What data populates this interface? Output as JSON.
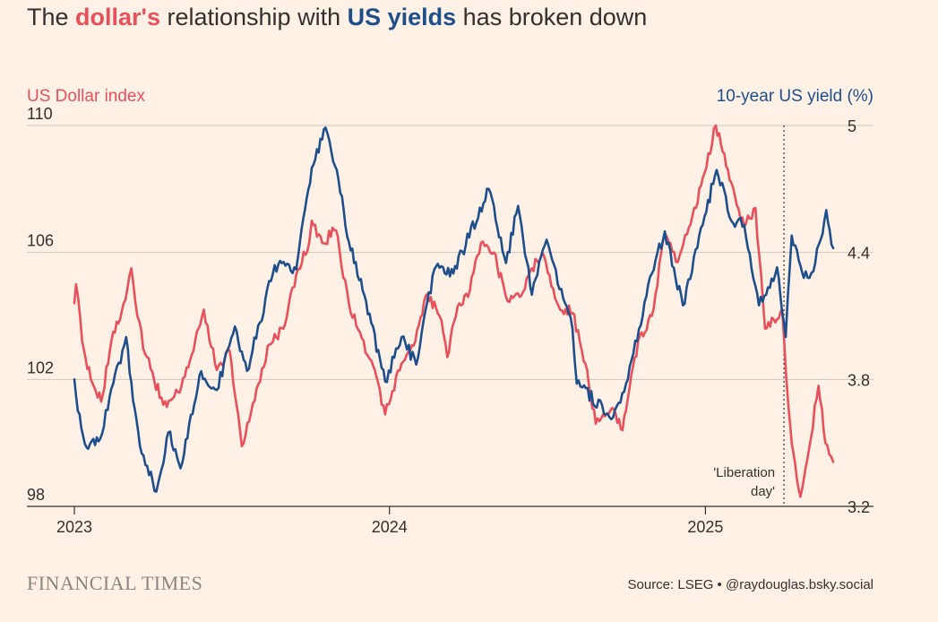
{
  "title": {
    "prefix": "The ",
    "dollar": "dollar's",
    "middle": " relationship with ",
    "yields": "US yields",
    "suffix": " has broken down"
  },
  "left_axis_title": "US Dollar index",
  "right_axis_title": "10-year US yield (%)",
  "footer": {
    "logo": "FINANCIAL TIMES",
    "source": "Source: LSEG • @raydouglas.bsky.social"
  },
  "colors": {
    "dollar": "#e8505b",
    "yield": "#1d4f8c",
    "grid": "#cfc7be",
    "text": "#33302e"
  },
  "chart_data": {
    "type": "line",
    "x_ticks": [
      {
        "label": "2023",
        "date": "2023-01-01"
      },
      {
        "label": "2024",
        "date": "2024-01-01"
      },
      {
        "label": "2025",
        "date": "2025-01-01"
      }
    ],
    "x_range": [
      "2023-01-01",
      "2025-05-29"
    ],
    "left_axis": {
      "label": "US Dollar index",
      "range": [
        98,
        110
      ],
      "ticks": [
        98,
        102,
        106,
        110
      ]
    },
    "right_axis": {
      "label": "10-year US yield (%)",
      "range": [
        3.2,
        5.0
      ],
      "ticks": [
        3.2,
        3.8,
        4.4,
        5
      ]
    },
    "grid": true,
    "annotation": {
      "lines": [
        "'Liberation",
        "day'"
      ],
      "date": "2025-04-02"
    },
    "series": [
      {
        "name": "US Dollar index",
        "axis": "left",
        "points": [
          [
            "2023-01-01",
            104.4
          ],
          [
            "2023-01-03",
            105.0
          ],
          [
            "2023-01-10",
            103.2
          ],
          [
            "2023-01-20",
            102.0
          ],
          [
            "2023-02-01",
            101.3
          ],
          [
            "2023-02-15",
            103.5
          ],
          [
            "2023-03-01",
            104.5
          ],
          [
            "2023-03-08",
            105.5
          ],
          [
            "2023-03-15",
            104.0
          ],
          [
            "2023-03-24",
            102.8
          ],
          [
            "2023-04-14",
            101.2
          ],
          [
            "2023-05-01",
            101.6
          ],
          [
            "2023-05-15",
            102.6
          ],
          [
            "2023-05-31",
            104.2
          ],
          [
            "2023-06-15",
            102.3
          ],
          [
            "2023-06-30",
            102.9
          ],
          [
            "2023-07-14",
            99.9
          ],
          [
            "2023-07-31",
            101.7
          ],
          [
            "2023-08-15",
            103.1
          ],
          [
            "2023-08-31",
            103.6
          ],
          [
            "2023-09-15",
            105.3
          ],
          [
            "2023-09-30",
            106.3
          ],
          [
            "2023-10-03",
            107.0
          ],
          [
            "2023-10-15",
            106.3
          ],
          [
            "2023-10-31",
            106.7
          ],
          [
            "2023-11-15",
            104.4
          ],
          [
            "2023-11-30",
            103.3
          ],
          [
            "2023-12-15",
            102.3
          ],
          [
            "2023-12-27",
            100.9
          ],
          [
            "2024-01-15",
            102.5
          ],
          [
            "2024-01-31",
            103.2
          ],
          [
            "2024-02-14",
            104.7
          ],
          [
            "2024-02-28",
            104.0
          ],
          [
            "2024-03-08",
            102.7
          ],
          [
            "2024-03-20",
            104.3
          ],
          [
            "2024-04-01",
            104.6
          ],
          [
            "2024-04-16",
            106.3
          ],
          [
            "2024-05-01",
            106.0
          ],
          [
            "2024-05-15",
            104.6
          ],
          [
            "2024-05-31",
            104.6
          ],
          [
            "2024-06-14",
            105.5
          ],
          [
            "2024-06-26",
            106.0
          ],
          [
            "2024-07-15",
            104.3
          ],
          [
            "2024-07-31",
            104.1
          ],
          [
            "2024-08-15",
            102.5
          ],
          [
            "2024-08-27",
            100.6
          ],
          [
            "2024-09-15",
            101.1
          ],
          [
            "2024-09-27",
            100.4
          ],
          [
            "2024-10-15",
            103.2
          ],
          [
            "2024-10-31",
            104.0
          ],
          [
            "2024-11-15",
            106.6
          ],
          [
            "2024-11-30",
            105.7
          ],
          [
            "2024-12-15",
            106.9
          ],
          [
            "2024-12-31",
            108.5
          ],
          [
            "2025-01-13",
            110.0
          ],
          [
            "2025-01-31",
            108.2
          ],
          [
            "2025-02-15",
            106.8
          ],
          [
            "2025-02-28",
            107.4
          ],
          [
            "2025-03-11",
            103.6
          ],
          [
            "2025-03-31",
            104.2
          ],
          [
            "2025-04-02",
            103.3
          ],
          [
            "2025-04-07",
            101.2
          ],
          [
            "2025-04-11",
            100.0
          ],
          [
            "2025-04-21",
            98.3
          ],
          [
            "2025-05-01",
            99.8
          ],
          [
            "2025-05-12",
            101.8
          ],
          [
            "2025-05-20",
            100.0
          ],
          [
            "2025-05-29",
            99.4
          ]
        ]
      },
      {
        "name": "10-year US yield (%)",
        "axis": "right",
        "points": [
          [
            "2023-01-01",
            3.8
          ],
          [
            "2023-01-05",
            3.65
          ],
          [
            "2023-01-15",
            3.48
          ],
          [
            "2023-01-31",
            3.52
          ],
          [
            "2023-02-15",
            3.78
          ],
          [
            "2023-03-02",
            4.0
          ],
          [
            "2023-03-10",
            3.7
          ],
          [
            "2023-03-20",
            3.45
          ],
          [
            "2023-04-06",
            3.27
          ],
          [
            "2023-04-20",
            3.55
          ],
          [
            "2023-05-04",
            3.38
          ],
          [
            "2023-05-26",
            3.82
          ],
          [
            "2023-06-15",
            3.75
          ],
          [
            "2023-07-06",
            4.05
          ],
          [
            "2023-07-20",
            3.84
          ],
          [
            "2023-08-21",
            4.34
          ],
          [
            "2023-09-15",
            4.32
          ],
          [
            "2023-10-03",
            4.8
          ],
          [
            "2023-10-19",
            4.99
          ],
          [
            "2023-11-01",
            4.79
          ],
          [
            "2023-11-15",
            4.45
          ],
          [
            "2023-12-01",
            4.22
          ],
          [
            "2023-12-27",
            3.79
          ],
          [
            "2024-01-15",
            4.0
          ],
          [
            "2024-02-01",
            3.87
          ],
          [
            "2024-02-22",
            4.32
          ],
          [
            "2024-03-15",
            4.3
          ],
          [
            "2024-04-25",
            4.7
          ],
          [
            "2024-05-15",
            4.35
          ],
          [
            "2024-05-29",
            4.62
          ],
          [
            "2024-06-14",
            4.2
          ],
          [
            "2024-07-01",
            4.46
          ],
          [
            "2024-07-31",
            4.04
          ],
          [
            "2024-08-05",
            3.78
          ],
          [
            "2024-09-16",
            3.62
          ],
          [
            "2024-10-01",
            3.78
          ],
          [
            "2024-10-31",
            4.3
          ],
          [
            "2024-11-15",
            4.5
          ],
          [
            "2024-12-06",
            4.15
          ],
          [
            "2024-12-31",
            4.57
          ],
          [
            "2025-01-14",
            4.79
          ],
          [
            "2025-01-31",
            4.55
          ],
          [
            "2025-02-15",
            4.53
          ],
          [
            "2025-03-04",
            4.15
          ],
          [
            "2025-03-25",
            4.33
          ],
          [
            "2025-04-04",
            4.0
          ],
          [
            "2025-04-11",
            4.48
          ],
          [
            "2025-04-25",
            4.28
          ],
          [
            "2025-05-06",
            4.31
          ],
          [
            "2025-05-21",
            4.6
          ],
          [
            "2025-05-29",
            4.42
          ]
        ]
      }
    ]
  }
}
